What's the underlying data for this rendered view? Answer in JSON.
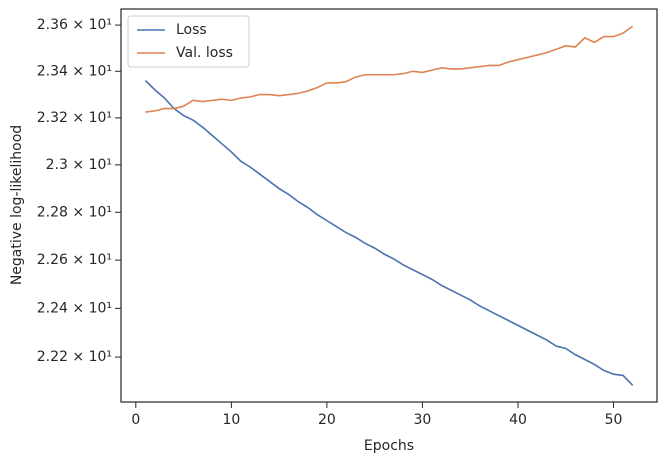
{
  "chart_data": {
    "type": "line",
    "xlabel": "Epochs",
    "ylabel": "Negative log-likelihood",
    "x": [
      1,
      2,
      3,
      4,
      5,
      6,
      7,
      8,
      9,
      10,
      11,
      12,
      13,
      14,
      15,
      16,
      17,
      18,
      19,
      20,
      21,
      22,
      23,
      24,
      25,
      26,
      27,
      28,
      29,
      30,
      31,
      32,
      33,
      34,
      35,
      36,
      37,
      38,
      39,
      40,
      41,
      42,
      43,
      44,
      45,
      46,
      47,
      48,
      49,
      50,
      51,
      52
    ],
    "series": [
      {
        "name": "Loss",
        "color": "#4c72b0",
        "values": [
          23.36,
          23.32,
          23.285,
          23.24,
          23.21,
          23.19,
          23.16,
          23.125,
          23.09,
          23.055,
          23.015,
          22.99,
          22.96,
          22.93,
          22.9,
          22.875,
          22.845,
          22.82,
          22.79,
          22.765,
          22.74,
          22.715,
          22.695,
          22.67,
          22.65,
          22.625,
          22.605,
          22.58,
          22.56,
          22.54,
          22.52,
          22.495,
          22.475,
          22.455,
          22.435,
          22.41,
          22.39,
          22.37,
          22.35,
          22.33,
          22.31,
          22.29,
          22.27,
          22.245,
          22.235,
          22.21,
          22.19,
          22.17,
          22.145,
          22.13,
          22.125,
          22.085
        ]
      },
      {
        "name": "Val. loss",
        "color": "#dd8452",
        "values": [
          23.225,
          23.23,
          23.24,
          23.24,
          23.25,
          23.275,
          23.27,
          23.275,
          23.28,
          23.275,
          23.285,
          23.29,
          23.3,
          23.3,
          23.295,
          23.3,
          23.305,
          23.315,
          23.33,
          23.35,
          23.35,
          23.355,
          23.375,
          23.385,
          23.385,
          23.385,
          23.385,
          23.39,
          23.4,
          23.395,
          23.405,
          23.415,
          23.41,
          23.41,
          23.415,
          23.42,
          23.425,
          23.425,
          23.44,
          23.45,
          23.46,
          23.47,
          23.48,
          23.495,
          23.51,
          23.505,
          23.545,
          23.525,
          23.55,
          23.55,
          23.565,
          23.595
        ]
      }
    ],
    "xlim": [
      -1.55,
      54.55
    ],
    "xticks": [
      0,
      10,
      20,
      30,
      40,
      50
    ],
    "ylim": [
      22.017,
      23.67
    ],
    "log_y": true,
    "yticks": [
      {
        "value": 22.2,
        "label": "2.22 × 10¹"
      },
      {
        "value": 22.4,
        "label": "2.24 × 10¹"
      },
      {
        "value": 22.6,
        "label": "2.26 × 10¹"
      },
      {
        "value": 22.8,
        "label": "2.28 × 10¹"
      },
      {
        "value": 23.0,
        "label": "2.3 × 10¹"
      },
      {
        "value": 23.2,
        "label": "2.32 × 10¹"
      },
      {
        "value": 23.4,
        "label": "2.34 × 10¹"
      },
      {
        "value": 23.6,
        "label": "2.36 × 10¹"
      }
    ],
    "legend": "upper left",
    "grid": false
  }
}
